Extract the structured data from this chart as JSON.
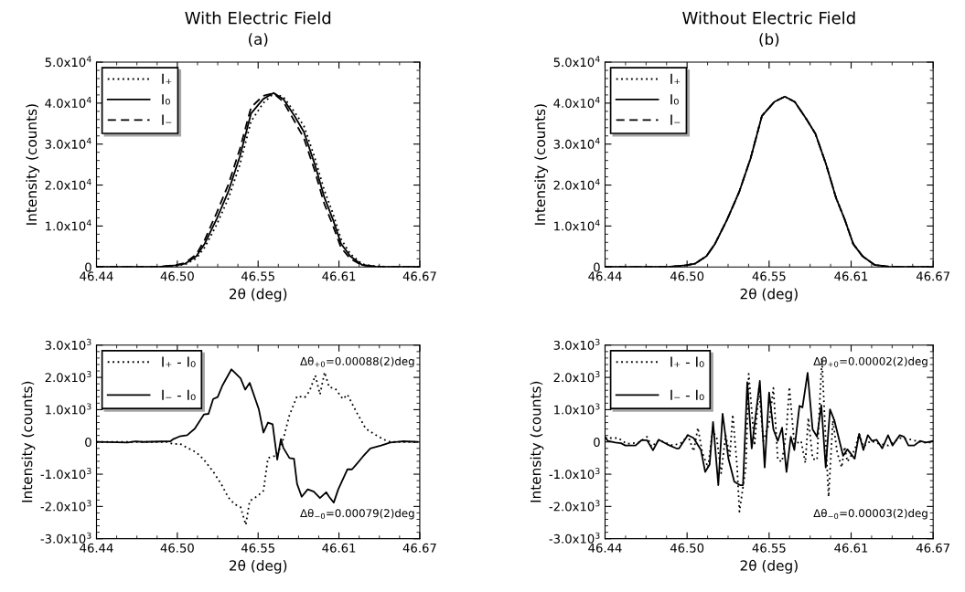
{
  "chart_data": [
    {
      "type": "line",
      "title": "With Electric Field",
      "subtitle": "(a)",
      "xlabel": "2θ (deg)",
      "ylabel": "Intensity (counts)",
      "legend": "top left",
      "x": [
        46.44,
        46.484,
        46.4966,
        46.503,
        46.511,
        46.517,
        46.5256,
        46.534,
        46.542,
        46.55,
        46.5586,
        46.566,
        46.573,
        46.581,
        46.5875,
        46.595,
        46.602,
        46.608,
        46.614,
        46.6206,
        46.629,
        46.639,
        46.649,
        46.67
      ],
      "xlim": [
        46.44,
        46.67
      ],
      "xticks": [
        {
          "value": 46.44,
          "label": "46.44"
        },
        {
          "value": 46.4975,
          "label": "46.50"
        },
        {
          "value": 46.555,
          "label": "46.55"
        },
        {
          "value": 46.6125,
          "label": "46.61"
        },
        {
          "value": 46.67,
          "label": "46.67"
        }
      ],
      "ylim": [
        0,
        50000
      ],
      "yticks": [
        0,
        {
          "value": 10000,
          "label": "1.0x10$^{4}$"
        },
        {
          "value": 20000,
          "label": "2.0x10$^{4}$"
        },
        {
          "value": 30000,
          "label": "3.0x10$^{4}$"
        },
        {
          "value": 40000,
          "label": "4.0x10$^{4}$"
        },
        {
          "value": 50000,
          "label": "5.0x10$^{4}$"
        }
      ],
      "series": [
        {
          "name": "I₊",
          "color": "#000000",
          "line_style": "dotted",
          "values": [
            0,
            0,
            300,
            600,
            2100,
            4800,
            10400,
            16900,
            25000,
            35600,
            40000,
            42300,
            41500,
            37800,
            34500,
            27000,
            18800,
            13300,
            6800,
            3200,
            700,
            200,
            0,
            0
          ]
        },
        {
          "name": "I₀",
          "color": "#000000",
          "line_style": "solid",
          "values": [
            0,
            0,
            400,
            800,
            2600,
            5700,
            11800,
            18600,
            27000,
            37500,
            41000,
            42500,
            41000,
            36800,
            33000,
            25400,
            17100,
            11800,
            5700,
            2600,
            500,
            100,
            0,
            0
          ]
        },
        {
          "name": "I₋",
          "color": "#000000",
          "line_style": "dashed",
          "values": [
            0,
            0,
            500,
            1000,
            3100,
            6600,
            13300,
            20300,
            28800,
            39000,
            41800,
            42400,
            40300,
            35500,
            31500,
            23800,
            15500,
            10300,
            4700,
            2000,
            400,
            100,
            0,
            0
          ]
        }
      ]
    },
    {
      "type": "line",
      "title": "Without Electric Field",
      "subtitle": "(b)",
      "xlabel": "2θ (deg)",
      "ylabel": "Intensity (counts)",
      "legend": "top left",
      "x": [
        46.44,
        46.484,
        46.4966,
        46.503,
        46.511,
        46.517,
        46.5256,
        46.534,
        46.542,
        46.55,
        46.5586,
        46.566,
        46.573,
        46.581,
        46.5875,
        46.595,
        46.602,
        46.608,
        46.614,
        46.6206,
        46.629,
        46.639,
        46.649,
        46.67
      ],
      "xlim": [
        46.44,
        46.67
      ],
      "xticks": [
        {
          "value": 46.44,
          "label": "46.44"
        },
        {
          "value": 46.4975,
          "label": "46.50"
        },
        {
          "value": 46.555,
          "label": "46.55"
        },
        {
          "value": 46.6125,
          "label": "46.61"
        },
        {
          "value": 46.67,
          "label": "46.67"
        }
      ],
      "ylim": [
        0,
        50000
      ],
      "yticks": [
        0,
        {
          "value": 10000,
          "label": "1.0x10$^{4}$"
        },
        {
          "value": 20000,
          "label": "2.0x10$^{4}$"
        },
        {
          "value": 30000,
          "label": "3.0x10$^{4}$"
        },
        {
          "value": 40000,
          "label": "4.0x10$^{4}$"
        },
        {
          "value": 50000,
          "label": "5.0x10$^{4}$"
        }
      ],
      "series": [
        {
          "name": "I₊",
          "color": "#000000",
          "line_style": "dotted",
          "values": [
            0,
            0,
            400,
            800,
            2600,
            5600,
            11600,
            18300,
            26500,
            36900,
            40300,
            41600,
            40300,
            36200,
            32500,
            25000,
            16800,
            11600,
            5600,
            2600,
            500,
            100,
            0,
            0
          ]
        },
        {
          "name": "I₀",
          "color": "#000000",
          "line_style": "solid",
          "values": [
            0,
            0,
            400,
            800,
            2600,
            5600,
            11600,
            18300,
            26500,
            36900,
            40300,
            41600,
            40300,
            36200,
            32500,
            25000,
            16800,
            11600,
            5600,
            2600,
            500,
            100,
            0,
            0
          ]
        },
        {
          "name": "I₋",
          "color": "#000000",
          "line_style": "dashed",
          "values": [
            0,
            0,
            400,
            800,
            2600,
            5600,
            11600,
            18300,
            26500,
            36900,
            40300,
            41600,
            40300,
            36200,
            32500,
            25000,
            16800,
            11600,
            5600,
            2600,
            500,
            100,
            0,
            0
          ]
        }
      ]
    },
    {
      "type": "line",
      "xlabel": "2θ (deg)",
      "ylabel": "Intensity (counts)",
      "legend": "top left",
      "annotations": [
        "Δθ$_{+0}$=0.00088(2)deg",
        "Δθ$_{−0}$=0.00079(2)deg"
      ],
      "xlim": [
        46.44,
        46.67
      ],
      "xticks": [
        {
          "value": 46.44,
          "label": "46.44"
        },
        {
          "value": 46.4975,
          "label": "46.50"
        },
        {
          "value": 46.555,
          "label": "46.55"
        },
        {
          "value": 46.6125,
          "label": "46.61"
        },
        {
          "value": 46.67,
          "label": "46.67"
        }
      ],
      "ylim": [
        -3000,
        3000
      ],
      "yticks": [
        {
          "value": -3000,
          "label": "-3.0x10$^{3}$"
        },
        {
          "value": -2000,
          "label": "-2.0x10$^{3}$"
        },
        {
          "value": -1000,
          "label": "-1.0x10$^{3}$"
        },
        0,
        {
          "value": 1000,
          "label": "1.0x10$^{3}$"
        },
        {
          "value": 2000,
          "label": "2.0x10$^{3}$"
        },
        {
          "value": 3000,
          "label": "3.0x10$^{3}$"
        }
      ],
      "series": [
        {
          "name": "I₊ - I₀",
          "color": "#000000",
          "line_style": "dotted",
          "x": [
            46.44,
            46.4904,
            46.4947,
            46.4991,
            46.5045,
            46.511,
            46.5164,
            46.523,
            46.5284,
            46.5338,
            46.5382,
            46.5425,
            46.5462,
            46.549,
            46.5545,
            46.5588,
            46.562,
            46.5686,
            46.5729,
            46.5773,
            46.5827,
            46.5881,
            46.5914,
            46.5957,
            46.599,
            46.6023,
            46.6055,
            46.6099,
            46.6153,
            46.6185,
            46.625,
            46.6316,
            46.6381,
            46.6446,
            46.649,
            46.6685
          ],
          "values": [
            0,
            0,
            -70,
            -50,
            -180,
            -320,
            -550,
            -920,
            -1280,
            -1720,
            -1930,
            -2020,
            -2570,
            -1830,
            -1680,
            -1510,
            -500,
            -410,
            90,
            830,
            1420,
            1380,
            1560,
            2060,
            1470,
            2160,
            1700,
            1650,
            1330,
            1470,
            920,
            410,
            230,
            70,
            0,
            0
          ]
        },
        {
          "name": "I₋ - I₀",
          "color": "#000000",
          "line_style": "solid",
          "x": [
            46.44,
            46.4622,
            46.4676,
            46.473,
            46.4926,
            46.4947,
            46.4991,
            46.5045,
            46.5099,
            46.5164,
            46.5197,
            46.523,
            46.5262,
            46.5295,
            46.536,
            46.5425,
            46.5458,
            46.549,
            46.5555,
            46.5588,
            46.562,
            46.5653,
            46.5686,
            46.5712,
            46.5729,
            46.5773,
            46.5805,
            46.5827,
            46.586,
            46.5903,
            46.5946,
            46.599,
            46.6034,
            46.6055,
            46.6088,
            46.612,
            46.6185,
            46.6218,
            46.625,
            46.6294,
            46.6348,
            46.6425,
            46.649,
            46.6576,
            46.6685
          ],
          "values": [
            0,
            -20,
            20,
            0,
            20,
            90,
            170,
            210,
            410,
            850,
            870,
            1330,
            1390,
            1740,
            2250,
            1970,
            1620,
            1830,
            1010,
            290,
            600,
            550,
            -550,
            90,
            -180,
            -500,
            -520,
            -1300,
            -1700,
            -1470,
            -1540,
            -1740,
            -1560,
            -1700,
            -1880,
            -1470,
            -850,
            -850,
            -690,
            -460,
            -200,
            -110,
            -20,
            20,
            0
          ]
        }
      ]
    },
    {
      "type": "line",
      "xlabel": "2θ (deg)",
      "ylabel": "Intensity (counts)",
      "legend": "top left",
      "annotations": [
        "Δθ$_{+0}$=0.00002(2)deg",
        "Δθ$_{−0}$=0.00003(2)deg"
      ],
      "xlim": [
        46.44,
        46.67
      ],
      "xticks": [
        {
          "value": 46.44,
          "label": "46.44"
        },
        {
          "value": 46.4975,
          "label": "46.50"
        },
        {
          "value": 46.555,
          "label": "46.55"
        },
        {
          "value": 46.6125,
          "label": "46.61"
        },
        {
          "value": 46.67,
          "label": "46.67"
        }
      ],
      "ylim": [
        -3000,
        3000
      ],
      "yticks": [
        {
          "value": -3000,
          "label": "-3.0x10$^{3}$"
        },
        {
          "value": -2000,
          "label": "-2.0x10$^{3}$"
        },
        {
          "value": -1000,
          "label": "-1.0x10$^{3}$"
        },
        0,
        {
          "value": 1000,
          "label": "1.0x10$^{3}$"
        },
        {
          "value": 2000,
          "label": "2.0x10$^{3}$"
        },
        {
          "value": 3000,
          "label": "3.0x10$^{3}$"
        }
      ],
      "series": [
        {
          "name": "I₊ - I₀",
          "color": "#000000",
          "line_style": "dotted",
          "x": [
            46.44,
            46.4492,
            46.4553,
            46.4634,
            46.4695,
            46.4726,
            46.4776,
            46.4878,
            46.4939,
            46.498,
            46.5021,
            46.5051,
            46.5082,
            46.5122,
            46.5153,
            46.5183,
            46.5214,
            46.5245,
            46.5275,
            46.5295,
            46.5326,
            46.5342,
            46.5387,
            46.5407,
            46.5448,
            46.5479,
            46.5509,
            46.555,
            46.558,
            46.5611,
            46.5641,
            46.5672,
            46.5692,
            46.5727,
            46.5774,
            46.5804,
            46.5825,
            46.5855,
            46.5886,
            46.592,
            46.5947,
            46.5967,
            46.5997,
            46.6028,
            46.6059,
            46.6079,
            46.6099,
            46.615,
            46.6181,
            46.6211,
            46.6262,
            46.6323,
            46.6384,
            46.6466,
            46.6547,
            46.6628,
            46.67
          ],
          "values": [
            120,
            120,
            -60,
            -20,
            160,
            -150,
            50,
            -110,
            -20,
            210,
            -290,
            440,
            -340,
            -790,
            350,
            120,
            -970,
            210,
            -430,
            850,
            -790,
            -2160,
            -790,
            2110,
            -110,
            1670,
            30,
            570,
            1670,
            -560,
            -610,
            390,
            1700,
            -80,
            30,
            -650,
            750,
            -520,
            -560,
            2600,
            30,
            -1700,
            660,
            -340,
            -790,
            -150,
            -610,
            -250,
            250,
            -150,
            30,
            -60,
            -110,
            120,
            70,
            -20,
            -20
          ]
        },
        {
          "name": "I₋ - I₀",
          "color": "#000000",
          "line_style": "solid",
          "x": [
            46.44,
            46.442,
            46.4471,
            46.4512,
            46.4542,
            46.4614,
            46.4654,
            46.4695,
            46.4736,
            46.4776,
            46.4838,
            46.4899,
            46.4919,
            46.498,
            46.5021,
            46.5072,
            46.5102,
            46.5133,
            46.5157,
            46.5194,
            46.5224,
            46.5265,
            46.5306,
            46.5346,
            46.5367,
            46.5397,
            46.5428,
            46.5485,
            46.5519,
            46.555,
            46.558,
            46.5611,
            46.5641,
            46.5672,
            46.5702,
            46.5727,
            46.5763,
            46.5784,
            46.582,
            46.5855,
            46.5886,
            46.5916,
            46.5947,
            46.5977,
            46.6008,
            46.6069,
            46.6099,
            46.615,
            46.6181,
            46.6211,
            46.6242,
            46.6272,
            46.6303,
            46.6343,
            46.6384,
            46.6415,
            46.6466,
            46.6496,
            46.6527,
            46.6567,
            46.6608,
            46.6649,
            46.67
          ],
          "values": [
            160,
            30,
            -20,
            -40,
            -110,
            -110,
            50,
            50,
            -260,
            70,
            -80,
            -200,
            -200,
            210,
            120,
            -250,
            -930,
            -700,
            620,
            -1340,
            870,
            -520,
            -1230,
            -1340,
            -1340,
            1850,
            -200,
            1890,
            -790,
            1530,
            390,
            30,
            440,
            -930,
            160,
            -250,
            1120,
            1070,
            2140,
            390,
            160,
            1140,
            -790,
            1010,
            660,
            -430,
            -230,
            -520,
            250,
            -250,
            210,
            30,
            70,
            -200,
            210,
            -110,
            210,
            160,
            -110,
            -110,
            30,
            -20,
            30
          ]
        }
      ]
    }
  ]
}
